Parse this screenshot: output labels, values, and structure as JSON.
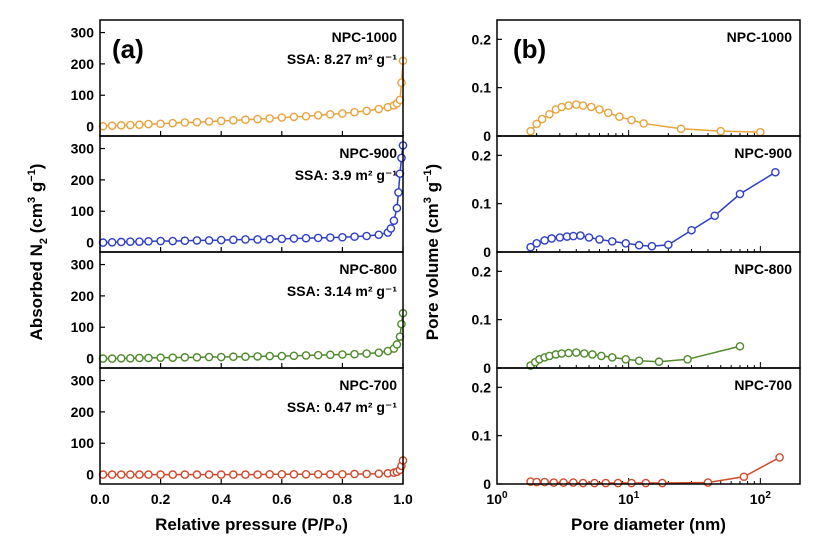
{
  "chart_data": [
    {
      "type": "scatter",
      "panel_label": "(a)",
      "xlabel": "Relative pressure (P/P₀)",
      "ylabel_parts": [
        "Absorbed N",
        "2",
        " (cm",
        "3",
        " g",
        "−1",
        ")"
      ],
      "xlim": [
        0,
        1
      ],
      "ylim": [
        -30,
        340
      ],
      "xticks": [
        "0.0",
        "0.2",
        "0.4",
        "0.6",
        "0.8",
        "1.0"
      ],
      "xtick_values": [
        0,
        0.2,
        0.4,
        0.6,
        0.8,
        1.0
      ],
      "yticks": [
        "0",
        "100",
        "200",
        "300"
      ],
      "ytick_values": [
        0,
        100,
        200,
        300
      ],
      "grid": false,
      "series": [
        {
          "name": "NPC-1000",
          "ssa": "SSA: 8.27 m² g⁻¹",
          "color": "#e8a33d",
          "x": [
            0.01,
            0.04,
            0.07,
            0.1,
            0.13,
            0.16,
            0.2,
            0.24,
            0.28,
            0.32,
            0.36,
            0.4,
            0.44,
            0.48,
            0.52,
            0.56,
            0.6,
            0.64,
            0.68,
            0.72,
            0.76,
            0.8,
            0.84,
            0.88,
            0.92,
            0.95,
            0.97,
            0.98,
            0.99,
            0.995,
            1.0
          ],
          "y": [
            1,
            3,
            4,
            5,
            6,
            8,
            9,
            11,
            13,
            14,
            16,
            18,
            20,
            22,
            24,
            26,
            29,
            31,
            33,
            36,
            39,
            42,
            46,
            50,
            56,
            62,
            68,
            74,
            85,
            140,
            210
          ]
        },
        {
          "name": "NPC-900",
          "ssa": "SSA: 3.9 m² g⁻¹",
          "color": "#2d3ec9",
          "x": [
            0.01,
            0.04,
            0.07,
            0.1,
            0.13,
            0.16,
            0.2,
            0.24,
            0.28,
            0.32,
            0.36,
            0.4,
            0.44,
            0.48,
            0.52,
            0.56,
            0.6,
            0.64,
            0.68,
            0.72,
            0.76,
            0.8,
            0.84,
            0.88,
            0.92,
            0.95,
            0.96,
            0.97,
            0.98,
            0.985,
            0.99,
            0.995,
            1.0
          ],
          "y": [
            0,
            1,
            2,
            3,
            3,
            4,
            5,
            5,
            6,
            7,
            7,
            8,
            9,
            10,
            10,
            11,
            12,
            13,
            14,
            15,
            16,
            17,
            19,
            21,
            25,
            32,
            45,
            70,
            110,
            160,
            220,
            270,
            310
          ]
        },
        {
          "name": "NPC-800",
          "ssa": "SSA: 3.14 m² g⁻¹",
          "color": "#4f8a2a",
          "x": [
            0.01,
            0.04,
            0.07,
            0.1,
            0.13,
            0.16,
            0.2,
            0.24,
            0.28,
            0.32,
            0.36,
            0.4,
            0.44,
            0.48,
            0.52,
            0.56,
            0.6,
            0.64,
            0.68,
            0.72,
            0.76,
            0.8,
            0.84,
            0.88,
            0.92,
            0.95,
            0.97,
            0.98,
            0.99,
            0.995,
            1.0
          ],
          "y": [
            0,
            0,
            1,
            1,
            2,
            2,
            3,
            3,
            4,
            4,
            5,
            5,
            6,
            6,
            7,
            8,
            8,
            9,
            10,
            11,
            12,
            13,
            14,
            16,
            19,
            24,
            32,
            45,
            70,
            110,
            145
          ]
        },
        {
          "name": "NPC-700",
          "ssa": "SSA: 0.47 m² g⁻¹",
          "color": "#cf4a2c",
          "x": [
            0.01,
            0.04,
            0.07,
            0.1,
            0.13,
            0.16,
            0.2,
            0.24,
            0.28,
            0.32,
            0.36,
            0.4,
            0.44,
            0.48,
            0.52,
            0.56,
            0.6,
            0.64,
            0.68,
            0.72,
            0.76,
            0.8,
            0.84,
            0.88,
            0.92,
            0.95,
            0.97,
            0.98,
            0.99,
            0.995,
            1.0
          ],
          "y": [
            0,
            0,
            0,
            0,
            0,
            0,
            0,
            0,
            0,
            0,
            0,
            0,
            0,
            0,
            0,
            1,
            1,
            1,
            1,
            1,
            1,
            1,
            2,
            2,
            3,
            4,
            6,
            9,
            15,
            28,
            45
          ]
        }
      ]
    },
    {
      "type": "line",
      "panel_label": "(b)",
      "xlabel": "Pore diameter (nm)",
      "ylabel_parts": [
        "Pore volume (cm",
        "3",
        " g",
        "−1",
        ")"
      ],
      "xscale": "log",
      "xlim": [
        1,
        200
      ],
      "ylim": [
        0,
        0.24
      ],
      "xticks_base": [
        "10",
        "10",
        "10"
      ],
      "xticks_exp": [
        "0",
        "1",
        "2"
      ],
      "xtick_values": [
        1,
        10,
        100
      ],
      "yticks": [
        "0",
        "0.1",
        "0.2"
      ],
      "ytick_values": [
        0,
        0.1,
        0.2
      ],
      "grid": false,
      "series": [
        {
          "name": "NPC-1000",
          "color": "#e8a33d",
          "x": [
            1.8,
            2.0,
            2.2,
            2.5,
            2.8,
            3.1,
            3.5,
            4.0,
            4.5,
            5.2,
            6.0,
            7.0,
            8.5,
            10.5,
            13,
            25,
            50,
            100
          ],
          "y": [
            0.01,
            0.025,
            0.035,
            0.045,
            0.055,
            0.06,
            0.063,
            0.065,
            0.063,
            0.06,
            0.055,
            0.048,
            0.04,
            0.033,
            0.026,
            0.015,
            0.01,
            0.008
          ]
        },
        {
          "name": "NPC-900",
          "color": "#2d3ec9",
          "x": [
            1.8,
            2.0,
            2.3,
            2.6,
            3.0,
            3.4,
            3.8,
            4.3,
            5.0,
            6.0,
            7.5,
            9.5,
            12,
            15,
            20,
            30,
            45,
            70,
            130
          ],
          "y": [
            0.01,
            0.018,
            0.024,
            0.028,
            0.03,
            0.032,
            0.033,
            0.034,
            0.03,
            0.026,
            0.022,
            0.018,
            0.014,
            0.012,
            0.015,
            0.045,
            0.075,
            0.12,
            0.165
          ]
        },
        {
          "name": "NPC-800",
          "color": "#4f8a2a",
          "x": [
            1.8,
            1.95,
            2.1,
            2.3,
            2.5,
            2.8,
            3.1,
            3.5,
            4.0,
            4.6,
            5.3,
            6.2,
            7.5,
            9.5,
            12,
            17,
            28,
            70
          ],
          "y": [
            0.005,
            0.012,
            0.018,
            0.022,
            0.025,
            0.028,
            0.03,
            0.031,
            0.032,
            0.03,
            0.028,
            0.025,
            0.022,
            0.018,
            0.015,
            0.013,
            0.018,
            0.045
          ]
        },
        {
          "name": "NPC-700",
          "color": "#cf4a2c",
          "x": [
            1.8,
            2.0,
            2.3,
            2.7,
            3.2,
            3.8,
            4.5,
            5.5,
            6.7,
            8.3,
            10.5,
            13.5,
            18,
            40,
            75,
            140
          ],
          "y": [
            0.005,
            0.004,
            0.004,
            0.003,
            0.003,
            0.003,
            0.002,
            0.002,
            0.002,
            0.002,
            0.002,
            0.002,
            0.002,
            0.003,
            0.015,
            0.055
          ]
        }
      ]
    }
  ]
}
